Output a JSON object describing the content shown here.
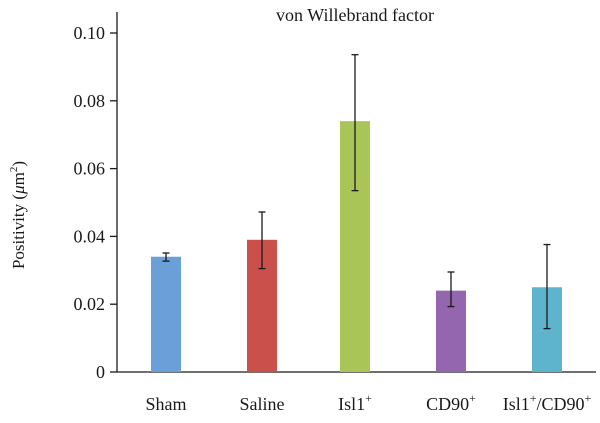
{
  "chart_data": {
    "type": "bar",
    "title": "von Willebrand factor",
    "xlabel": "",
    "ylabel": {
      "prefix": "Positivity (",
      "mu": "μ",
      "unit": "m",
      "exp": "2",
      "suffix": ")"
    },
    "ylim": [
      0,
      0.1
    ],
    "yticks": [
      "0",
      "0.02",
      "0.04",
      "0.06",
      "0.08",
      "0.10"
    ],
    "ytick_values": [
      0,
      0.02,
      0.04,
      0.06,
      0.08,
      0.1
    ],
    "grid": false,
    "categories": [
      {
        "base": "Sham",
        "sup": ""
      },
      {
        "base": "Saline",
        "sup": ""
      },
      {
        "base": "Isl1",
        "sup": "+"
      },
      {
        "base": "CD90",
        "sup": "+"
      },
      {
        "base": "Isl1",
        "sup": "+",
        "base2": "/CD90",
        "sup2": "+"
      }
    ],
    "values": [
      0.034,
      0.039,
      0.074,
      0.024,
      0.025
    ],
    "error_low": [
      0.0327,
      0.0305,
      0.0535,
      0.0193,
      0.0128
    ],
    "error_high": [
      0.0351,
      0.0472,
      0.0936,
      0.0295,
      0.0376
    ],
    "colors": [
      "#6a9fd8",
      "#c9504b",
      "#a9c457",
      "#9466b0",
      "#5db4cc"
    ]
  }
}
